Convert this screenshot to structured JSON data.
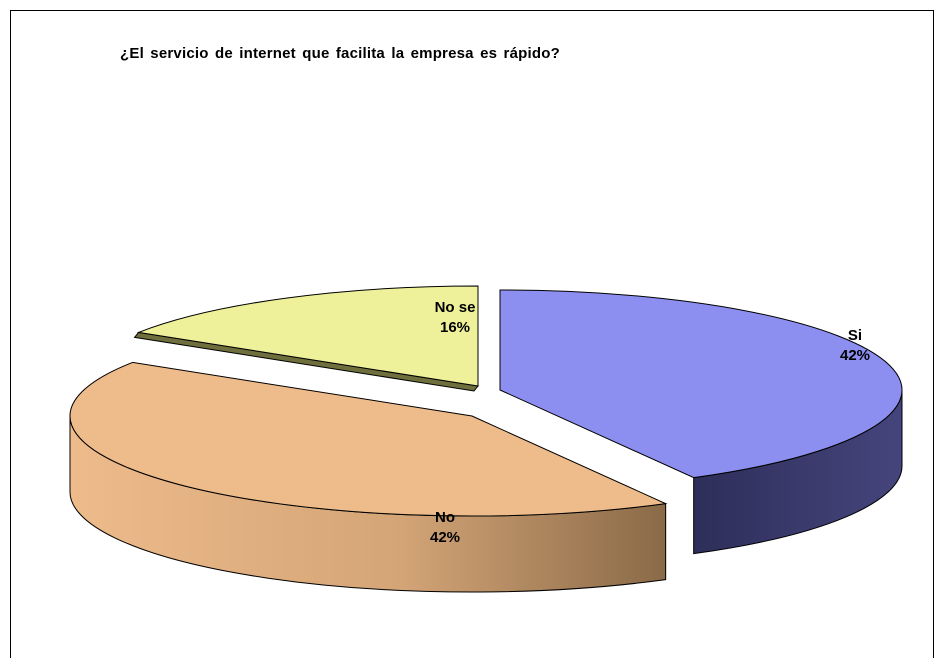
{
  "chart_data": {
    "type": "pie",
    "title": "¿El servicio de internet que facilita la empresa es rápido?",
    "slices": [
      {
        "label": "Si",
        "value": 42,
        "value_label": "42%",
        "color": "#8c8ff0",
        "side_color": "#3d3d70"
      },
      {
        "label": "No",
        "value": 42,
        "value_label": "42%",
        "color": "#eebb8b",
        "side_color": "#b08860"
      },
      {
        "label": "No se",
        "value": 16,
        "value_label": "16%",
        "color": "#eef19a",
        "side_color": "#6e6f3c"
      }
    ],
    "style": "3d-exploded",
    "legend": "none"
  }
}
